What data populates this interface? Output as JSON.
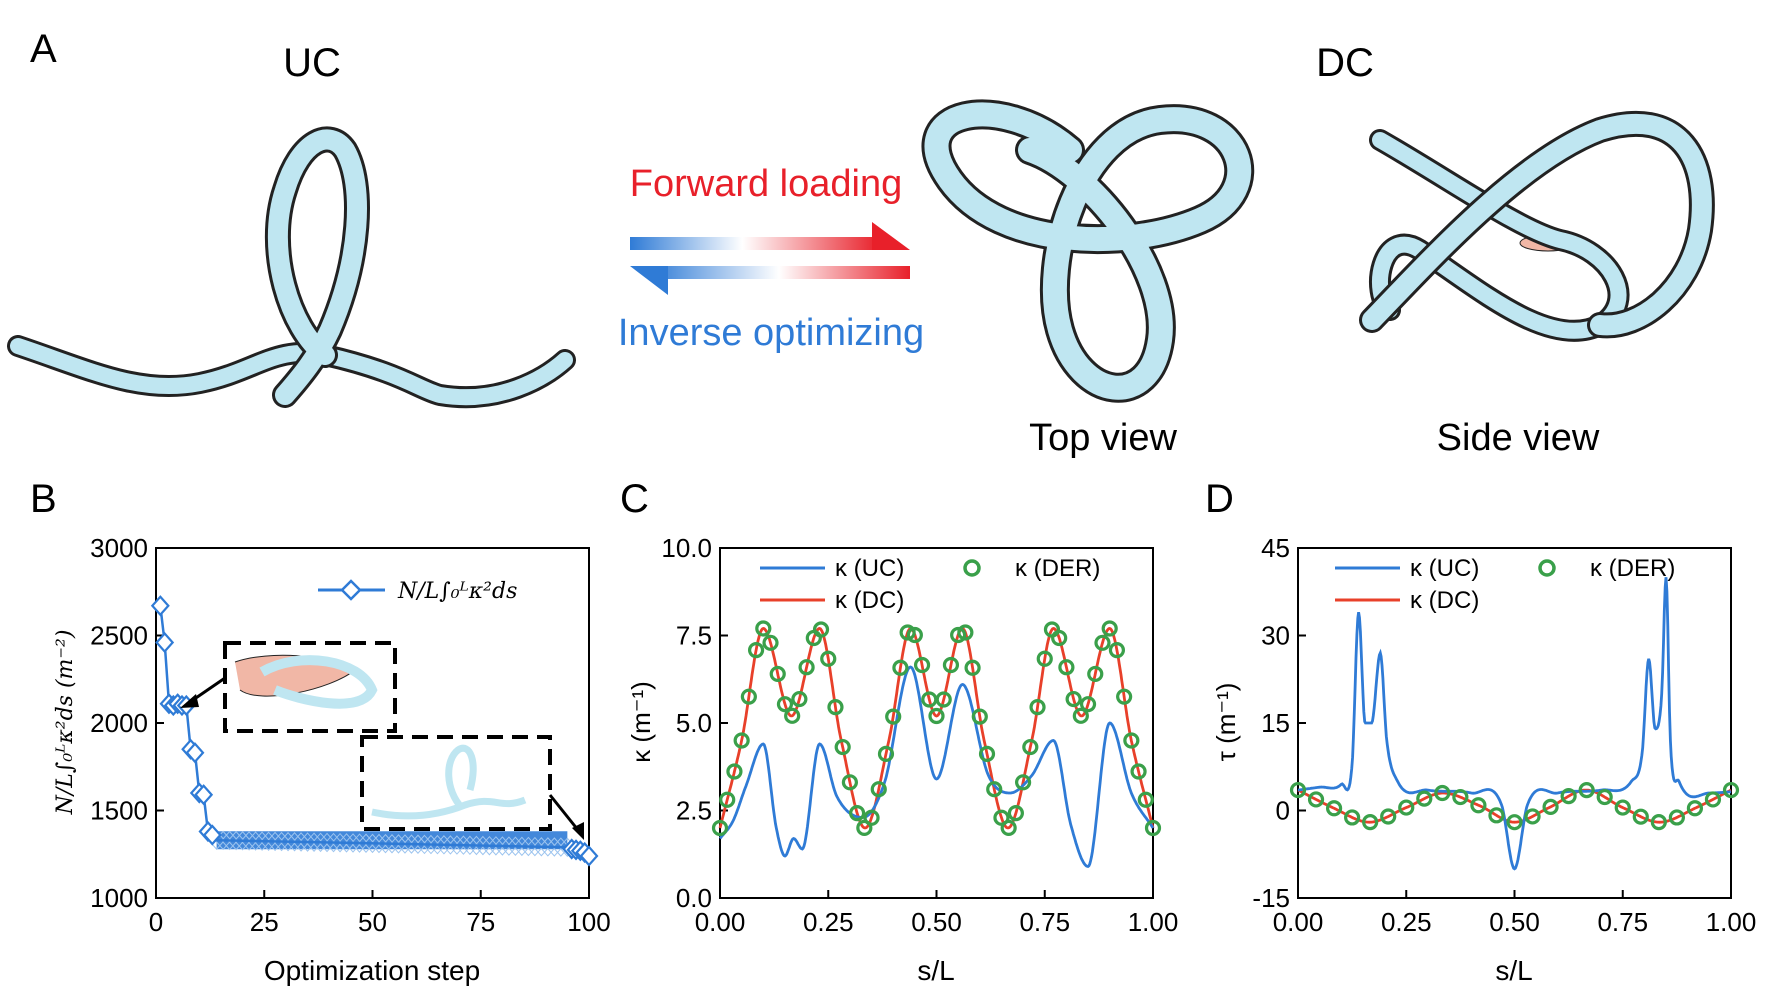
{
  "panel_a": {
    "panel_label": "A",
    "uc_title": "UC",
    "dc_title": "DC",
    "forward_text": "Forward loading",
    "inverse_text": "Inverse optimizing",
    "top_view": "Top view",
    "side_view": "Side view",
    "colors": {
      "forward": "#e8202a",
      "inverse": "#2f7bd6",
      "rod": "#bfe6f1",
      "rod_edge": "#222222",
      "pink": "#f1b7a6"
    }
  },
  "chart_data": [
    {
      "id": "B",
      "type": "line",
      "panel_label": "B",
      "xlabel": "Optimization step",
      "ylabel": "N/L∫₀ᴸκ²ds (m⁻²)",
      "xlim": [
        0,
        100
      ],
      "ylim": [
        1000,
        3000
      ],
      "xticks": [
        "0",
        "25",
        "50",
        "75",
        "100"
      ],
      "yticks": [
        "1000",
        "1500",
        "2000",
        "2500",
        "3000"
      ],
      "legend": "N/L∫₀ᴸκ²ds",
      "marker": "diamond",
      "color": "#2f7bd6",
      "series": [
        {
          "x": [
            1,
            2,
            3,
            4,
            5,
            6,
            7,
            8,
            9,
            10,
            11,
            12,
            13
          ],
          "y": [
            2670,
            2460,
            2110,
            2100,
            2110,
            2100,
            2100,
            1850,
            1830,
            1600,
            1590,
            1380,
            1360
          ]
        }
      ],
      "plateau": {
        "x_start": 14,
        "x_end": 95,
        "y_start": 1330,
        "y_end": 1290
      },
      "tail": {
        "x": [
          96,
          97,
          98,
          99,
          100
        ],
        "y": [
          1280,
          1275,
          1270,
          1260,
          1240
        ]
      }
    },
    {
      "id": "C",
      "type": "line",
      "panel_label": "C",
      "xlabel": "s/L",
      "ylabel": "κ (m⁻¹)",
      "xlim": [
        0,
        1
      ],
      "ylim": [
        0,
        10
      ],
      "xticks": [
        "0.00",
        "0.25",
        "0.50",
        "0.75",
        "1.00"
      ],
      "yticks": [
        "0.0",
        "2.5",
        "5.0",
        "7.5",
        "10.0"
      ],
      "legend_items": [
        {
          "label": "κ (UC)",
          "color": "#2f7bd6",
          "kind": "line"
        },
        {
          "label": "κ (DC)",
          "color": "#e8402a",
          "kind": "line"
        },
        {
          "label": "κ (DER)",
          "color": "#3aa04a",
          "kind": "circle"
        }
      ],
      "series": [
        {
          "name": "κ (UC)",
          "x": [
            0,
            0.03,
            0.06,
            0.1,
            0.13,
            0.15,
            0.17,
            0.19,
            0.23,
            0.27,
            0.33,
            0.38,
            0.44,
            0.5,
            0.56,
            0.62,
            0.67,
            0.72,
            0.77,
            0.81,
            0.85,
            0.9,
            0.95,
            1.0
          ],
          "y": [
            1.7,
            2.2,
            3.2,
            4.4,
            2.0,
            1.2,
            1.7,
            1.4,
            4.4,
            2.9,
            2.3,
            3.3,
            6.6,
            3.4,
            6.1,
            3.5,
            3.0,
            3.5,
            4.5,
            2.1,
            0.9,
            5.0,
            3.0,
            2.0
          ]
        },
        {
          "name": "κ (DC)",
          "x": [
            0,
            0.05,
            0.1,
            0.165,
            0.23,
            0.28,
            0.335,
            0.39,
            0.44,
            0.5,
            0.56,
            0.61,
            0.665,
            0.72,
            0.77,
            0.835,
            0.9,
            0.95,
            1.0
          ],
          "y": [
            2.0,
            4.5,
            7.7,
            5.2,
            7.7,
            4.5,
            2.0,
            4.5,
            7.7,
            5.2,
            7.7,
            4.5,
            2.0,
            4.5,
            7.7,
            5.2,
            7.7,
            4.5,
            2.0
          ]
        }
      ]
    },
    {
      "id": "D",
      "type": "line",
      "panel_label": "D",
      "xlabel": "s/L",
      "ylabel": "τ (m⁻¹)",
      "xlim": [
        0,
        1
      ],
      "ylim": [
        -15,
        45
      ],
      "xticks": [
        "0.00",
        "0.25",
        "0.50",
        "0.75",
        "1.00"
      ],
      "yticks": [
        "-15",
        "0",
        "15",
        "30",
        "45"
      ],
      "legend_items": [
        {
          "label": "κ (UC)",
          "color": "#2f7bd6",
          "kind": "line"
        },
        {
          "label": "κ (DC)",
          "color": "#e8402a",
          "kind": "line"
        },
        {
          "label": "κ (DER)",
          "color": "#3aa04a",
          "kind": "circle"
        }
      ],
      "series": [
        {
          "name": "κ (UC)",
          "x": [
            0,
            0.05,
            0.1,
            0.125,
            0.14,
            0.155,
            0.17,
            0.19,
            0.205,
            0.23,
            0.3,
            0.4,
            0.47,
            0.5,
            0.53,
            0.6,
            0.7,
            0.77,
            0.795,
            0.81,
            0.825,
            0.84,
            0.85,
            0.86,
            0.88,
            0.95,
            1.0
          ],
          "y": [
            3.5,
            4.0,
            4.5,
            8.0,
            34,
            15,
            15,
            27,
            12,
            5.0,
            3.5,
            3.0,
            1.0,
            -10,
            1.0,
            3.0,
            3.5,
            5.0,
            10,
            26,
            14,
            20,
            40,
            12,
            5.0,
            3.0,
            3.2
          ]
        },
        {
          "name": "κ (DC)",
          "x": [
            0,
            0.08,
            0.165,
            0.25,
            0.335,
            0.42,
            0.5,
            0.58,
            0.665,
            0.75,
            0.835,
            0.92,
            1.0
          ],
          "y": [
            3.5,
            0.5,
            -2.0,
            0.5,
            3.0,
            0.8,
            -2.0,
            0.5,
            3.5,
            0.5,
            -2.0,
            0.5,
            3.5
          ]
        }
      ]
    }
  ]
}
